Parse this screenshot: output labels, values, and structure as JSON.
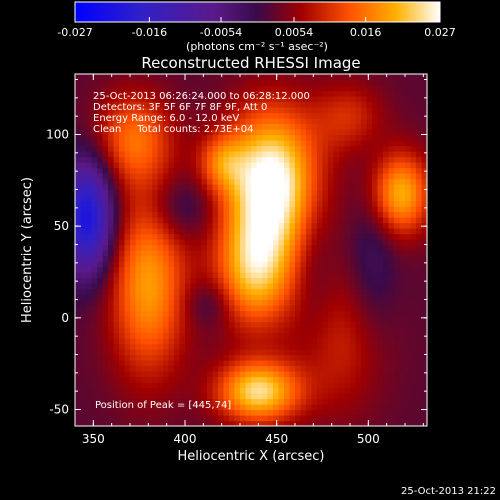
{
  "chart_data": {
    "type": "heatmap",
    "title": "Reconstructed RHESSI Image",
    "xlabel": "Heliocentric X (arcsec)",
    "ylabel": "Heliocentric Y (arcsec)",
    "xlim": [
      340,
      532
    ],
    "ylim": [
      -59,
      133
    ],
    "xticks": [
      350,
      400,
      450,
      500
    ],
    "yticks": [
      -50,
      0,
      50,
      100
    ],
    "colorbar": {
      "ticks": [
        "-0.027",
        "-0.016",
        "-0.0054",
        "0.0054",
        "0.016",
        "0.027"
      ],
      "range": [
        -0.027,
        0.027
      ],
      "unit_label": "(photons cm⁻² s⁻¹ asec⁻²)"
    },
    "annotations": [
      "25-Oct-2013 06:26:24.000 to 06:28:12.000",
      "Detectors: 3F 5F 6F 7F 8F 9F, Att 0",
      "Energy Range: 6.0 - 12.0 keV",
      "Clean     Total counts: 2.73E+04"
    ],
    "peak_label": "Position of Peak = [445,74]",
    "blobs": [
      {
        "x": 447,
        "y": 74,
        "sx": 18,
        "sy": 28,
        "a": 0.027
      },
      {
        "x": 438,
        "y": 25,
        "sx": 15,
        "sy": 22,
        "a": 0.018
      },
      {
        "x": 440,
        "y": -40,
        "sx": 16,
        "sy": 12,
        "a": 0.022
      },
      {
        "x": 380,
        "y": 18,
        "sx": 15,
        "sy": 35,
        "a": 0.017
      },
      {
        "x": 372,
        "y": 98,
        "sx": 15,
        "sy": 18,
        "a": 0.013
      },
      {
        "x": 517,
        "y": 68,
        "sx": 12,
        "sy": 16,
        "a": 0.019
      },
      {
        "x": 420,
        "y": 85,
        "sx": 9,
        "sy": 11,
        "a": 0.01
      },
      {
        "x": 485,
        "y": -15,
        "sx": 18,
        "sy": 28,
        "a": 0.007
      },
      {
        "x": 490,
        "y": 110,
        "sx": 14,
        "sy": 14,
        "a": 0.008
      },
      {
        "x": 347,
        "y": 55,
        "sx": 10,
        "sy": 22,
        "a": -0.024
      },
      {
        "x": 398,
        "y": 60,
        "sx": 12,
        "sy": 12,
        "a": -0.006
      },
      {
        "x": 413,
        "y": 8,
        "sx": 9,
        "sy": 9,
        "a": -0.005
      },
      {
        "x": 470,
        "y": 30,
        "sx": 8,
        "sy": 30,
        "a": -0.003
      },
      {
        "x": 503,
        "y": 40,
        "sx": 9,
        "sy": 35,
        "a": -0.005
      }
    ]
  },
  "footer_timestamp": "25-Oct-2013 21:22"
}
